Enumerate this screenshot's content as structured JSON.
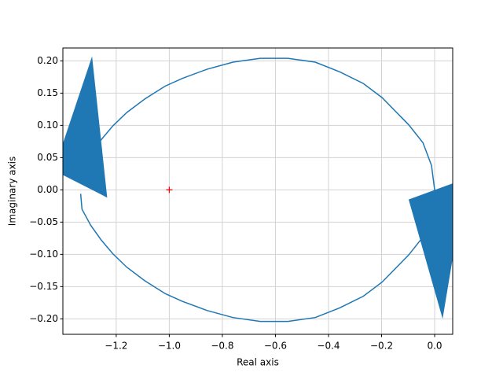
{
  "chart_data": {
    "type": "line",
    "x_label": "Real axis",
    "y_label": "Imaginary axis",
    "series": [
      {
        "color": "#1f77b4",
        "x": [
          -1.334,
          -1.329,
          -1.296,
          -1.258,
          -1.213,
          -1.16,
          -1.092,
          -1.015,
          -0.95,
          -0.858,
          -0.76,
          -0.657,
          -0.553,
          -0.45,
          -0.358,
          -0.269,
          -0.198,
          -0.098,
          -0.044,
          -0.012,
          0.0,
          -0.012,
          -0.044,
          -0.098,
          -0.198,
          -0.269,
          -0.358,
          -0.45,
          -0.553,
          -0.657,
          -0.76,
          -0.858,
          -0.95,
          -1.015,
          -1.092,
          -1.16,
          -1.213,
          -1.258,
          -1.296,
          -1.32
        ],
        "values": [
          -0.006,
          -0.03,
          -0.055,
          -0.077,
          -0.099,
          -0.12,
          -0.141,
          -0.161,
          -0.173,
          -0.187,
          -0.198,
          -0.204,
          -0.204,
          -0.198,
          -0.183,
          -0.165,
          -0.143,
          -0.101,
          -0.073,
          -0.038,
          0.0,
          0.038,
          0.073,
          0.101,
          0.143,
          0.165,
          0.183,
          0.198,
          0.204,
          0.204,
          0.198,
          0.187,
          0.173,
          0.161,
          0.141,
          0.12,
          0.099,
          0.077,
          0.055,
          0.04
        ]
      }
    ],
    "arrows": [
      {
        "x": [
          -1.291,
          -1.401,
          -1.401,
          -1.234
        ],
        "y": [
          0.207,
          0.072,
          0.023,
          -0.012
        ]
      },
      {
        "x": [
          0.068,
          -0.098,
          0.03,
          0.068
        ],
        "y": [
          0.01,
          -0.015,
          -0.2,
          -0.106
        ]
      }
    ],
    "critical_point": {
      "x": -1,
      "y": 0,
      "color": "red"
    },
    "xlim": [
      -1.401,
      0.068
    ],
    "ylim": [
      -0.224,
      0.22
    ],
    "xticks": [
      {
        "value": -1.2,
        "label": "−1.2"
      },
      {
        "value": -1.0,
        "label": "−1.0"
      },
      {
        "value": -0.8,
        "label": "−0.8"
      },
      {
        "value": -0.6,
        "label": "−0.6"
      },
      {
        "value": -0.4,
        "label": "−0.4"
      },
      {
        "value": -0.2,
        "label": "−0.2"
      },
      {
        "value": 0.0,
        "label": "0.0"
      }
    ],
    "yticks": [
      {
        "value": -0.2,
        "label": "−0.20"
      },
      {
        "value": -0.15,
        "label": "−0.15"
      },
      {
        "value": -0.1,
        "label": "−0.10"
      },
      {
        "value": -0.05,
        "label": "−0.05"
      },
      {
        "value": 0.0,
        "label": "0.00"
      },
      {
        "value": 0.05,
        "label": "0.05"
      },
      {
        "value": 0.1,
        "label": "0.10"
      },
      {
        "value": 0.15,
        "label": "0.15"
      },
      {
        "value": 0.2,
        "label": "0.20"
      }
    ],
    "grid": true
  }
}
